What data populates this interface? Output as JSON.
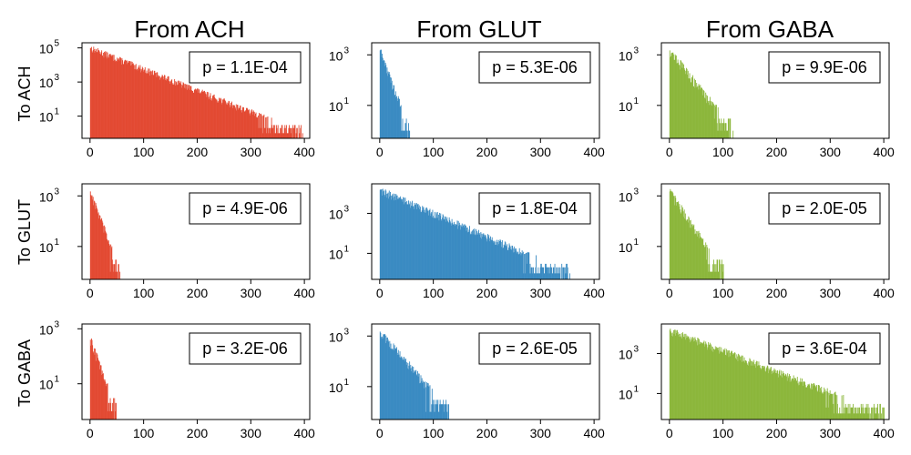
{
  "col_titles": [
    "From ACH",
    "From GLUT",
    "From GABA"
  ],
  "row_labels": [
    "To ACH",
    "To GLUT",
    "To GABA"
  ],
  "colors": {
    "ACH": "#e34a33",
    "GLUT": "#3a8bc2",
    "GABA": "#8cb73c"
  },
  "chart_data": {
    "type": "bar",
    "grid": false,
    "xlim": [
      -15,
      410
    ],
    "xticks": [
      0,
      100,
      200,
      300,
      400
    ],
    "yscale": "log",
    "panels": [
      {
        "from": "ACH",
        "to": "ACH",
        "p_text": "p =  1.1E-04",
        "tail_max": 400,
        "peak": 100000,
        "ylim": [
          0.5,
          200000
        ],
        "yticks": [
          {
            "exp": "1",
            "label": "10"
          },
          {
            "exp": "3",
            "label": "10"
          },
          {
            "exp": "5",
            "label": "10"
          }
        ]
      },
      {
        "from": "GLUT",
        "to": "ACH",
        "p_text": "p =  5.3E-06",
        "tail_max": 55,
        "peak": 1500,
        "ylim": [
          0.5,
          3000
        ],
        "yticks": [
          {
            "exp": "1",
            "label": "10"
          },
          {
            "exp": "3",
            "label": "10"
          }
        ]
      },
      {
        "from": "GABA",
        "to": "ACH",
        "p_text": "p =  9.9E-06",
        "tail_max": 120,
        "peak": 1500,
        "ylim": [
          0.5,
          3000
        ],
        "yticks": [
          {
            "exp": "1",
            "label": "10"
          },
          {
            "exp": "3",
            "label": "10"
          }
        ]
      },
      {
        "from": "ACH",
        "to": "GLUT",
        "p_text": "p =  4.9E-06",
        "tail_max": 55,
        "peak": 1500,
        "ylim": [
          0.5,
          3000
        ],
        "yticks": [
          {
            "exp": "1",
            "label": "10"
          },
          {
            "exp": "3",
            "label": "10"
          }
        ]
      },
      {
        "from": "GLUT",
        "to": "GLUT",
        "p_text": "p =  1.8E-04",
        "tail_max": 355,
        "peak": 15000,
        "ylim": [
          0.5,
          30000
        ],
        "yticks": [
          {
            "exp": "1",
            "label": "10"
          },
          {
            "exp": "3",
            "label": "10"
          }
        ]
      },
      {
        "from": "GABA",
        "to": "GLUT",
        "p_text": "p =  2.0E-05",
        "tail_max": 100,
        "peak": 1500,
        "ylim": [
          0.5,
          3000
        ],
        "yticks": [
          {
            "exp": "1",
            "label": "10"
          },
          {
            "exp": "3",
            "label": "10"
          }
        ]
      },
      {
        "from": "ACH",
        "to": "GABA",
        "p_text": "p =  3.2E-06",
        "tail_max": 50,
        "peak": 400,
        "ylim": [
          0.5,
          1500
        ],
        "yticks": [
          {
            "exp": "1",
            "label": "10"
          },
          {
            "exp": "3",
            "label": "10"
          }
        ]
      },
      {
        "from": "GLUT",
        "to": "GABA",
        "p_text": "p =  2.6E-05",
        "tail_max": 130,
        "peak": 1500,
        "ylim": [
          0.5,
          3000
        ],
        "yticks": [
          {
            "exp": "1",
            "label": "10"
          },
          {
            "exp": "3",
            "label": "10"
          }
        ]
      },
      {
        "from": "GABA",
        "to": "GABA",
        "p_text": "p =  3.6E-04",
        "tail_max": 400,
        "peak": 15000,
        "ylim": [
          0.5,
          30000
        ],
        "yticks": [
          {
            "exp": "1",
            "label": "10"
          },
          {
            "exp": "3",
            "label": "10"
          }
        ]
      }
    ]
  }
}
